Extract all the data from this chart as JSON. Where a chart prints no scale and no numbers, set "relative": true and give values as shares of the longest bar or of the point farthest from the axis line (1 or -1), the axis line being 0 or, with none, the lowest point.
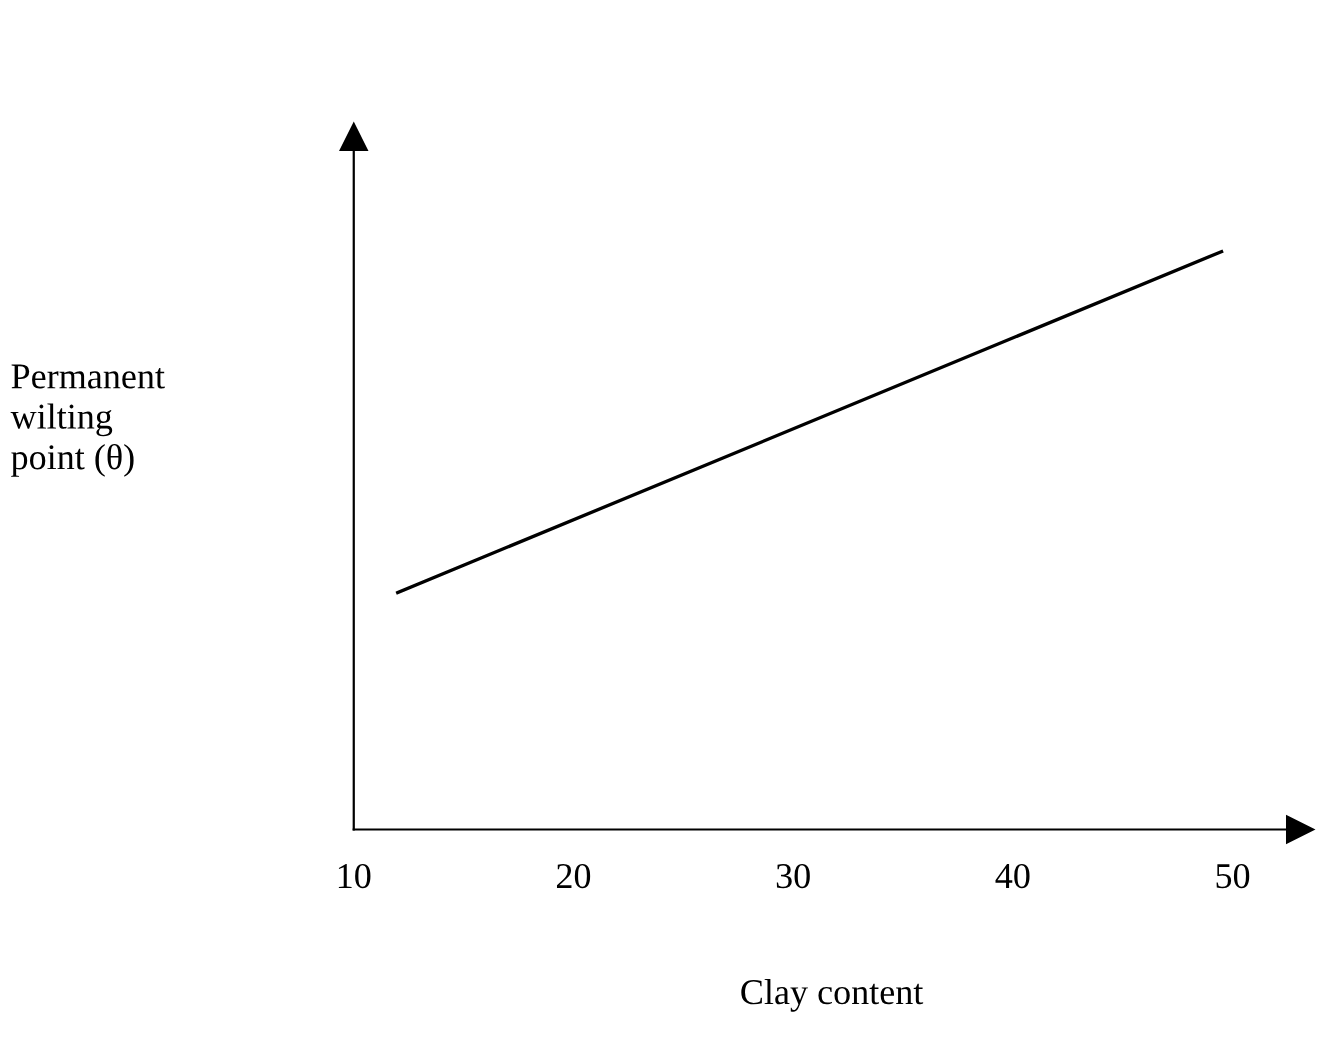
{
  "chart_data": {
    "type": "line",
    "relative": true,
    "xlabel": "Clay content",
    "ylabel": "Permanent\nwilting\npoint (θ)",
    "xlim": [
      10,
      53.5
    ],
    "xticks": [
      10,
      20,
      30,
      40,
      50
    ],
    "series": [
      {
        "color": "#000000",
        "x": [
          12,
          49.5
        ],
        "values": [
          0.41,
          1
        ]
      }
    ],
    "grid": false,
    "marker": "none",
    "line_style": "solid"
  }
}
